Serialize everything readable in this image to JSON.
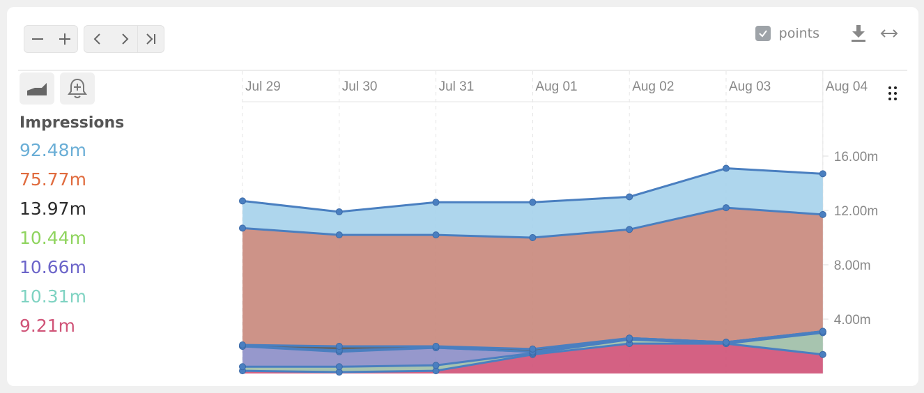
{
  "toolbar": {
    "zoom_out_icon": "minus-icon",
    "zoom_in_icon": "plus-icon",
    "prev_icon": "chevron-left-icon",
    "next_icon": "chevron-right-icon",
    "last_icon": "skip-to-end-icon",
    "points_label": "points",
    "points_checked": true,
    "download_icon": "download-icon",
    "expand_icon": "horizontal-arrows-icon",
    "area_mode_icon": "area-chart-icon",
    "alert_icon": "bell-plus-icon",
    "more_icon": "drag-dots-icon"
  },
  "legend": {
    "title": "Impressions",
    "items": [
      {
        "value": "92.48m",
        "color": "#6aaed6"
      },
      {
        "value": "75.77m",
        "color": "#e06b3e"
      },
      {
        "value": "13.97m",
        "color": "#2b2b2b"
      },
      {
        "value": "10.44m",
        "color": "#8fd45e"
      },
      {
        "value": "10.66m",
        "color": "#6b64c9"
      },
      {
        "value": "10.31m",
        "color": "#7fd3c2"
      },
      {
        "value": "9.21m",
        "color": "#d05478"
      }
    ]
  },
  "chart_data": {
    "type": "area",
    "stacked": true,
    "categories": [
      "Jul 29",
      "Jul 30",
      "Jul 31",
      "Aug 01",
      "Aug 02",
      "Aug 03",
      "Aug 04"
    ],
    "y_ticks": [
      "4.00m",
      "8.00m",
      "12.00m",
      "16.00m"
    ],
    "y_tick_values": [
      4,
      8,
      12,
      16
    ],
    "ylim": [
      0,
      20
    ],
    "y_axis_position": "right",
    "x_axis_position": "top",
    "line_color": "#4a7fc0",
    "series": [
      {
        "color": "#d05478",
        "values": [
          0.2,
          0.1,
          0.2,
          1.4,
          2.2,
          2.2,
          1.4
        ]
      },
      {
        "color": "#9fbfa8",
        "values": [
          0.3,
          0.4,
          0.4,
          0.1,
          0.3,
          0.0,
          1.6
        ]
      },
      {
        "color": "#8d8fc8",
        "values": [
          1.5,
          1.1,
          1.3,
          0.1,
          0.1,
          0.1,
          0.1
        ]
      },
      {
        "color": "#8fd45e",
        "values": [
          0.0,
          0.1,
          0.0,
          0.0,
          0.0,
          0.0,
          0.0
        ]
      },
      {
        "color": "#555555",
        "values": [
          0.1,
          0.3,
          0.1,
          0.2,
          0.0,
          0.0,
          0.0
        ]
      },
      {
        "color": "#c98a7e",
        "values": [
          8.6,
          8.2,
          8.2,
          8.2,
          8.0,
          9.9,
          8.6
        ]
      },
      {
        "color": "#a7d3ec",
        "values": [
          2.0,
          1.7,
          2.4,
          2.6,
          2.4,
          2.9,
          3.0
        ]
      }
    ]
  }
}
